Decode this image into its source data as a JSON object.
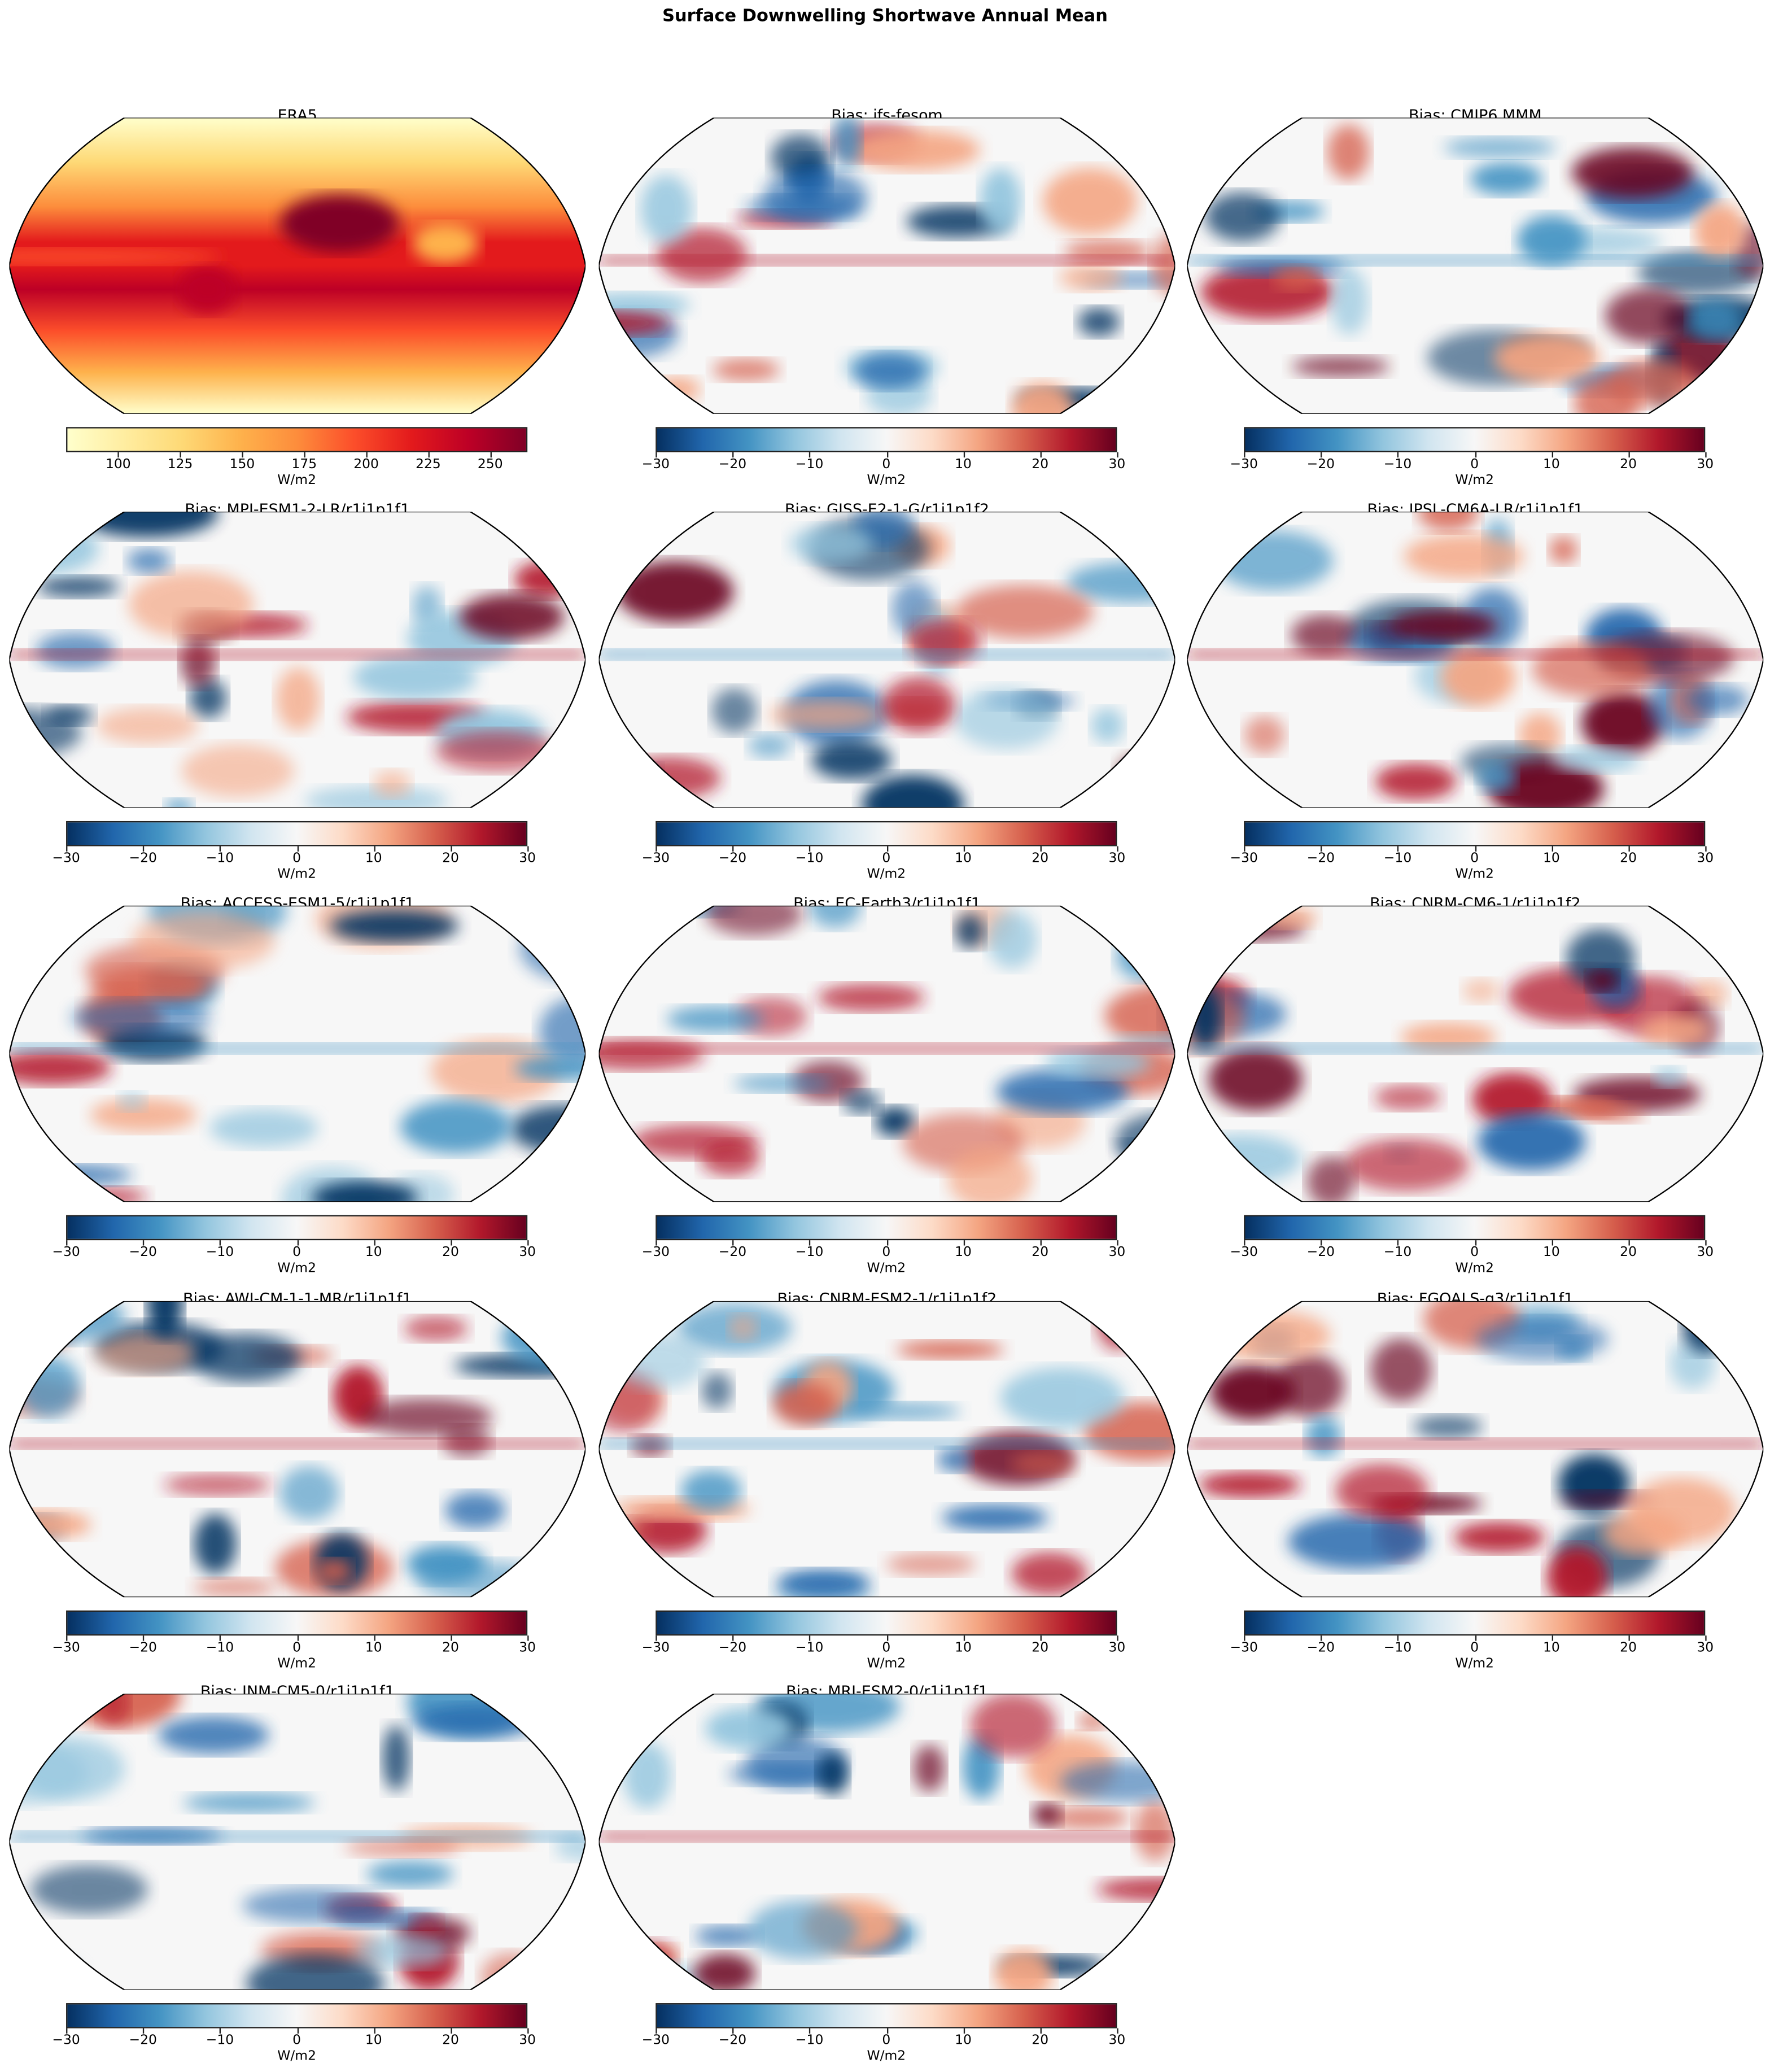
{
  "suptitle": "Surface Downwelling Shortwave Annual Mean",
  "colormaps": {
    "YlOrRd": [
      "#ffffcc",
      "#ffeda0",
      "#fed976",
      "#feb24c",
      "#fd8d3c",
      "#fc4e2a",
      "#e31a1c",
      "#bd0026",
      "#800026"
    ],
    "RdBu_r": [
      "#053061",
      "#2166ac",
      "#4393c3",
      "#92c5de",
      "#d1e5f0",
      "#f7f7f7",
      "#fddbc7",
      "#f4a582",
      "#d6604d",
      "#b2182b",
      "#67001f"
    ]
  },
  "chart_data": {
    "type": "heatmap",
    "title": "Surface Downwelling Shortwave Annual Mean",
    "projection": "Robinson",
    "panels": [
      {
        "title": "ERA5",
        "cmap": "YlOrRd",
        "clim": [
          79,
          265
        ],
        "ticks": [
          100,
          125,
          150,
          175,
          200,
          225,
          250
        ],
        "unit": "W/m2"
      },
      {
        "title": "Bias: ifs-fesom",
        "cmap": "RdBu_r",
        "clim": [
          -30,
          30
        ],
        "ticks": [
          -30,
          -20,
          -10,
          0,
          10,
          20,
          30
        ],
        "unit": "W/m2"
      },
      {
        "title": "Bias: CMIP6 MMM",
        "cmap": "RdBu_r",
        "clim": [
          -30,
          30
        ],
        "ticks": [
          -30,
          -20,
          -10,
          0,
          10,
          20,
          30
        ],
        "unit": "W/m2"
      },
      {
        "title": "Bias: MPI-ESM1-2-LR/r1i1p1f1",
        "cmap": "RdBu_r",
        "clim": [
          -30,
          30
        ],
        "ticks": [
          -30,
          -20,
          -10,
          0,
          10,
          20,
          30
        ],
        "unit": "W/m2"
      },
      {
        "title": "Bias: GISS-E2-1-G/r1i1p1f2",
        "cmap": "RdBu_r",
        "clim": [
          -30,
          30
        ],
        "ticks": [
          -30,
          -20,
          -10,
          0,
          10,
          20,
          30
        ],
        "unit": "W/m2"
      },
      {
        "title": "Bias: IPSL-CM6A-LR/r1i1p1f1",
        "cmap": "RdBu_r",
        "clim": [
          -30,
          30
        ],
        "ticks": [
          -30,
          -20,
          -10,
          0,
          10,
          20,
          30
        ],
        "unit": "W/m2"
      },
      {
        "title": "Bias: ACCESS-ESM1-5/r1i1p1f1",
        "cmap": "RdBu_r",
        "clim": [
          -30,
          30
        ],
        "ticks": [
          -30,
          -20,
          -10,
          0,
          10,
          20,
          30
        ],
        "unit": "W/m2"
      },
      {
        "title": "Bias: EC-Earth3/r1i1p1f1",
        "cmap": "RdBu_r",
        "clim": [
          -30,
          30
        ],
        "ticks": [
          -30,
          -20,
          -10,
          0,
          10,
          20,
          30
        ],
        "unit": "W/m2"
      },
      {
        "title": "Bias: CNRM-CM6-1/r1i1p1f2",
        "cmap": "RdBu_r",
        "clim": [
          -30,
          30
        ],
        "ticks": [
          -30,
          -20,
          -10,
          0,
          10,
          20,
          30
        ],
        "unit": "W/m2"
      },
      {
        "title": "Bias: AWI-CM-1-1-MR/r1i1p1f1",
        "cmap": "RdBu_r",
        "clim": [
          -30,
          30
        ],
        "ticks": [
          -30,
          -20,
          -10,
          0,
          10,
          20,
          30
        ],
        "unit": "W/m2"
      },
      {
        "title": "Bias: CNRM-ESM2-1/r1i1p1f2",
        "cmap": "RdBu_r",
        "clim": [
          -30,
          30
        ],
        "ticks": [
          -30,
          -20,
          -10,
          0,
          10,
          20,
          30
        ],
        "unit": "W/m2"
      },
      {
        "title": "Bias: FGOALS-g3/r1i1p1f1",
        "cmap": "RdBu_r",
        "clim": [
          -30,
          30
        ],
        "ticks": [
          -30,
          -20,
          -10,
          0,
          10,
          20,
          30
        ],
        "unit": "W/m2"
      },
      {
        "title": "Bias: INM-CM5-0/r1i1p1f1",
        "cmap": "RdBu_r",
        "clim": [
          -30,
          30
        ],
        "ticks": [
          -30,
          -20,
          -10,
          0,
          10,
          20,
          30
        ],
        "unit": "W/m2"
      },
      {
        "title": "Bias: MRI-ESM2-0/r1i1p1f1",
        "cmap": "RdBu_r",
        "clim": [
          -30,
          30
        ],
        "ticks": [
          -30,
          -20,
          -10,
          0,
          10,
          20,
          30
        ],
        "unit": "W/m2"
      }
    ]
  }
}
